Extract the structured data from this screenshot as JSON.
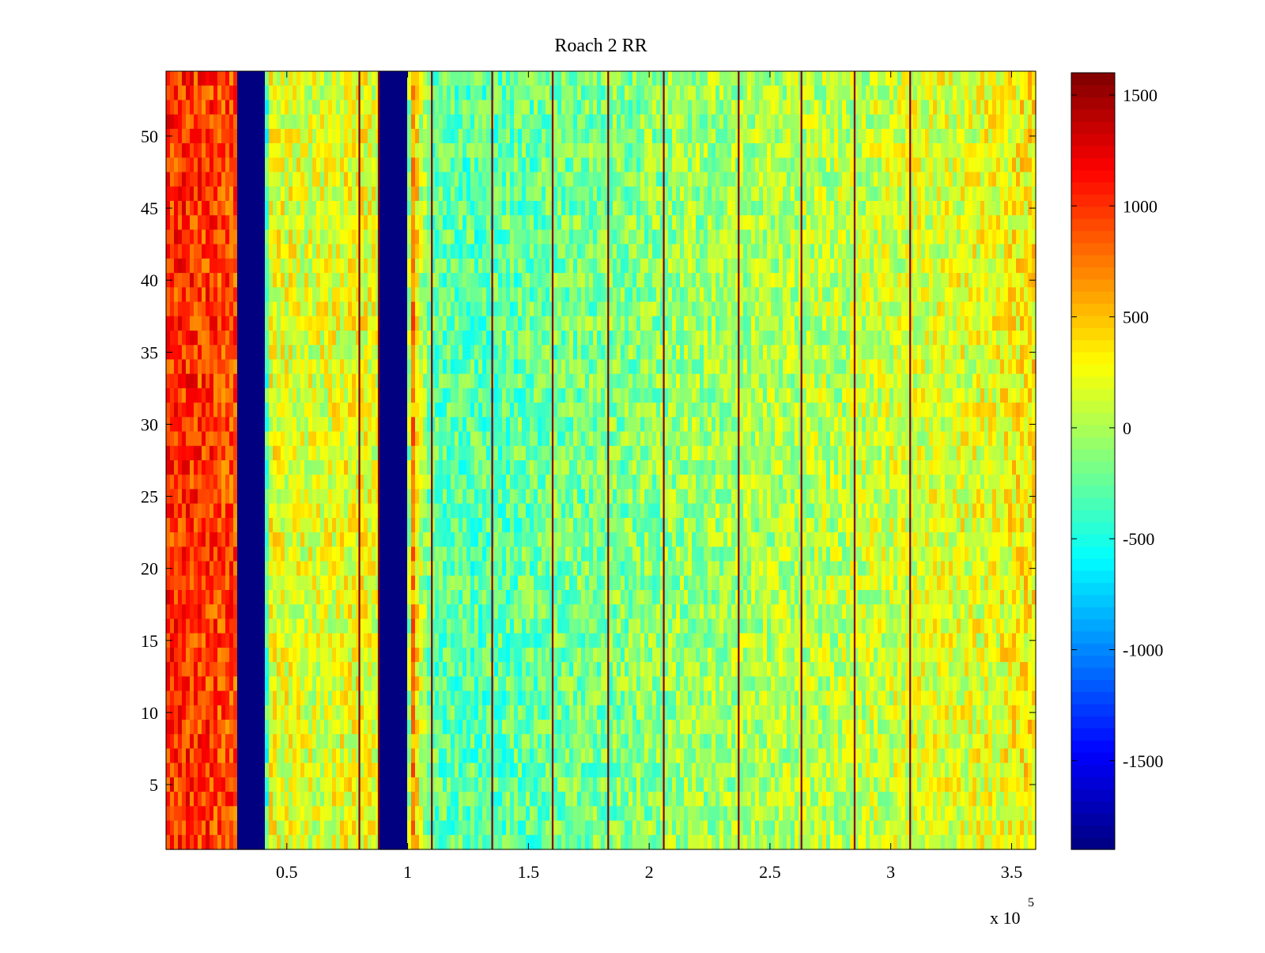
{
  "chart_data": {
    "type": "heatmap",
    "title": "Roach 2 RR",
    "xlabel": "",
    "ylabel": "",
    "x_multiplier_label": {
      "base": "x 10",
      "exponent": "5"
    },
    "xlim": [
      0,
      3.6
    ],
    "ylim": [
      0.5,
      54.5
    ],
    "x_ticks": [
      0.5,
      1,
      1.5,
      2,
      2.5,
      3,
      3.5
    ],
    "x_tick_labels": [
      "0.5",
      "1",
      "1.5",
      "2",
      "2.5",
      "3",
      "3.5"
    ],
    "y_ticks": [
      5,
      10,
      15,
      20,
      25,
      30,
      35,
      40,
      45,
      50
    ],
    "y_tick_labels": [
      "5",
      "10",
      "15",
      "20",
      "25",
      "30",
      "35",
      "40",
      "45",
      "50"
    ],
    "rows": 54,
    "colormap": "jet",
    "clim": [
      -1900,
      1600
    ],
    "colorbar": {
      "ticks": [
        -1500,
        -1000,
        -500,
        0,
        500,
        1000,
        1500
      ],
      "tick_labels": [
        "-1500",
        "-1000",
        "-500",
        "0",
        "500",
        "1000",
        "1500"
      ]
    },
    "column_profile": {
      "description_units": "x in units of 10^5, value = mean colour value",
      "x": [
        0.0,
        0.1,
        0.2,
        0.29,
        0.3,
        0.41,
        0.42,
        0.5,
        0.6,
        0.7,
        0.8,
        0.88,
        0.89,
        1.0,
        1.01,
        1.05,
        1.1,
        1.3,
        1.6,
        1.9,
        2.2,
        2.5,
        2.8,
        3.1,
        3.4,
        3.6
      ],
      "values": [
        1000,
        1000,
        950,
        900,
        -1900,
        -1900,
        250,
        200,
        150,
        200,
        250,
        150,
        -1900,
        -1900,
        1000,
        100,
        -250,
        -300,
        -200,
        -150,
        -50,
        0,
        50,
        150,
        200,
        350
      ]
    },
    "dark_red_columns_x": [
      0.8,
      0.88,
      1.1,
      1.35,
      1.6,
      1.83,
      2.06,
      2.37,
      2.63,
      2.85,
      3.08
    ],
    "blue_bands": [
      [
        0.3,
        0.41
      ],
      [
        0.89,
        1.0
      ]
    ]
  }
}
